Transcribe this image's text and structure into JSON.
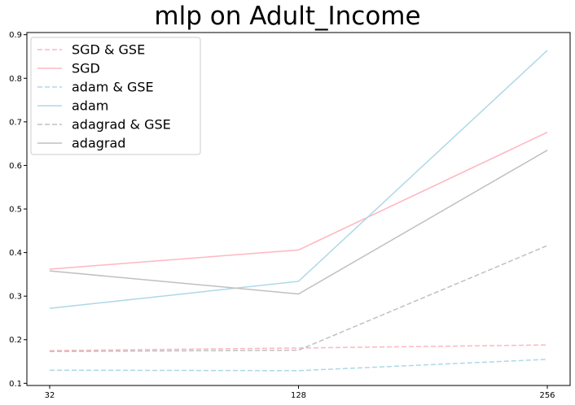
{
  "chart_data": {
    "type": "line",
    "title": "mlp on Adult_Income",
    "xlabel": "",
    "ylabel": "",
    "x": [
      32,
      128,
      256
    ],
    "x_tick_labels": [
      "32",
      "128",
      "256"
    ],
    "x_scale": "categorical",
    "ylim": [
      0.095,
      0.905
    ],
    "y_ticks": [
      0.1,
      0.2,
      0.3,
      0.4,
      0.5,
      0.6,
      0.7,
      0.8,
      0.9
    ],
    "y_tick_labels": [
      "0.1",
      "0.2",
      "0.3",
      "0.4",
      "0.5",
      "0.6",
      "0.7",
      "0.8",
      "0.9"
    ],
    "grid": false,
    "legend_position": "top-left",
    "series": [
      {
        "name": "SGD & GSE",
        "values": [
          0.175,
          0.181,
          0.188
        ],
        "color": "#ffb6c1",
        "dashed": true
      },
      {
        "name": "SGD",
        "values": [
          0.362,
          0.406,
          0.676
        ],
        "color": "#ffb6c1",
        "dashed": false
      },
      {
        "name": "adam & GSE",
        "values": [
          0.13,
          0.129,
          0.155
        ],
        "color": "#add8e6",
        "dashed": true
      },
      {
        "name": "adam",
        "values": [
          0.272,
          0.334,
          0.864
        ],
        "color": "#add8e6",
        "dashed": false
      },
      {
        "name": "adagrad & GSE",
        "values": [
          0.173,
          0.176,
          0.416
        ],
        "color": "#c0c0c0",
        "dashed": true
      },
      {
        "name": "adagrad",
        "values": [
          0.358,
          0.305,
          0.635
        ],
        "color": "#c0c0c0",
        "dashed": false
      }
    ]
  }
}
